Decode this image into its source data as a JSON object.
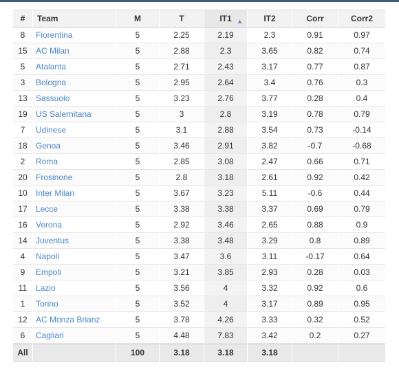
{
  "table": {
    "headers": {
      "rank": "#",
      "team": "Team",
      "m": "M",
      "t": "T",
      "it1": "IT1",
      "it2": "IT2",
      "corr": "Corr",
      "corr2": "Corr2"
    },
    "sort": {
      "column": "IT1",
      "direction": "ascending",
      "icon": "sort-up-icon",
      "icon_color": "#6b7ad0"
    },
    "link_color": "#4a86c5",
    "rows": [
      {
        "rank": "8",
        "team": "Fiorentina",
        "m": "5",
        "t": "2.25",
        "it1": "2.19",
        "it2": "2.3",
        "corr": "0.91",
        "corr2": "0.97"
      },
      {
        "rank": "15",
        "team": "AC Milan",
        "m": "5",
        "t": "2.88",
        "it1": "2.3",
        "it2": "3.65",
        "corr": "0.82",
        "corr2": "0.74"
      },
      {
        "rank": "5",
        "team": "Atalanta",
        "m": "5",
        "t": "2.71",
        "it1": "2.43",
        "it2": "3.17",
        "corr": "0.77",
        "corr2": "0.87"
      },
      {
        "rank": "3",
        "team": "Bologna",
        "m": "5",
        "t": "2.95",
        "it1": "2.64",
        "it2": "3.4",
        "corr": "0.76",
        "corr2": "0.3"
      },
      {
        "rank": "13",
        "team": "Sassuolo",
        "m": "5",
        "t": "3.23",
        "it1": "2.76",
        "it2": "3.77",
        "corr": "0.28",
        "corr2": "0.4"
      },
      {
        "rank": "19",
        "team": "US Salernitana",
        "m": "5",
        "t": "3",
        "it1": "2.8",
        "it2": "3.19",
        "corr": "0.78",
        "corr2": "0.79"
      },
      {
        "rank": "7",
        "team": "Udinese",
        "m": "5",
        "t": "3.1",
        "it1": "2.88",
        "it2": "3.54",
        "corr": "0.73",
        "corr2": "-0.14"
      },
      {
        "rank": "18",
        "team": "Genoa",
        "m": "5",
        "t": "3.46",
        "it1": "2.91",
        "it2": "3.82",
        "corr": "-0.7",
        "corr2": "-0.68"
      },
      {
        "rank": "2",
        "team": "Roma",
        "m": "5",
        "t": "2.85",
        "it1": "3.08",
        "it2": "2.47",
        "corr": "0.66",
        "corr2": "0.71"
      },
      {
        "rank": "20",
        "team": "Frosinone",
        "m": "5",
        "t": "2.8",
        "it1": "3.18",
        "it2": "2.61",
        "corr": "0.92",
        "corr2": "0.42"
      },
      {
        "rank": "10",
        "team": "Inter Milan",
        "m": "5",
        "t": "3.67",
        "it1": "3.23",
        "it2": "5.11",
        "corr": "-0.6",
        "corr2": "0.44"
      },
      {
        "rank": "17",
        "team": "Lecce",
        "m": "5",
        "t": "3.38",
        "it1": "3.38",
        "it2": "3.37",
        "corr": "0.69",
        "corr2": "0.79"
      },
      {
        "rank": "16",
        "team": "Verona",
        "m": "5",
        "t": "2.92",
        "it1": "3.46",
        "it2": "2.65",
        "corr": "0.88",
        "corr2": "0.9"
      },
      {
        "rank": "14",
        "team": "Juventus",
        "m": "5",
        "t": "3.38",
        "it1": "3.48",
        "it2": "3.29",
        "corr": "0.8",
        "corr2": "0.89"
      },
      {
        "rank": "4",
        "team": "Napoli",
        "m": "5",
        "t": "3.47",
        "it1": "3.6",
        "it2": "3.11",
        "corr": "-0.17",
        "corr2": "0.64"
      },
      {
        "rank": "9",
        "team": "Empoli",
        "m": "5",
        "t": "3.21",
        "it1": "3.85",
        "it2": "2.93",
        "corr": "0.28",
        "corr2": "0.03"
      },
      {
        "rank": "11",
        "team": "Lazio",
        "m": "5",
        "t": "3.56",
        "it1": "4",
        "it2": "3.32",
        "corr": "0.92",
        "corr2": "0.6"
      },
      {
        "rank": "1",
        "team": "Torino",
        "m": "5",
        "t": "3.52",
        "it1": "4",
        "it2": "3.17",
        "corr": "0.89",
        "corr2": "0.95"
      },
      {
        "rank": "12",
        "team": "AC Monza Brianz",
        "m": "5",
        "t": "3.78",
        "it1": "4.26",
        "it2": "3.33",
        "corr": "0.32",
        "corr2": "0.52"
      },
      {
        "rank": "6",
        "team": "Cagliari",
        "m": "5",
        "t": "4.48",
        "it1": "7.83",
        "it2": "3.42",
        "corr": "0.2",
        "corr2": "0.27"
      }
    ],
    "footer": {
      "label": "All",
      "team": "",
      "m": "100",
      "t": "3.18",
      "it1": "3.18",
      "it2": "3.18",
      "corr": "",
      "corr2": ""
    }
  }
}
